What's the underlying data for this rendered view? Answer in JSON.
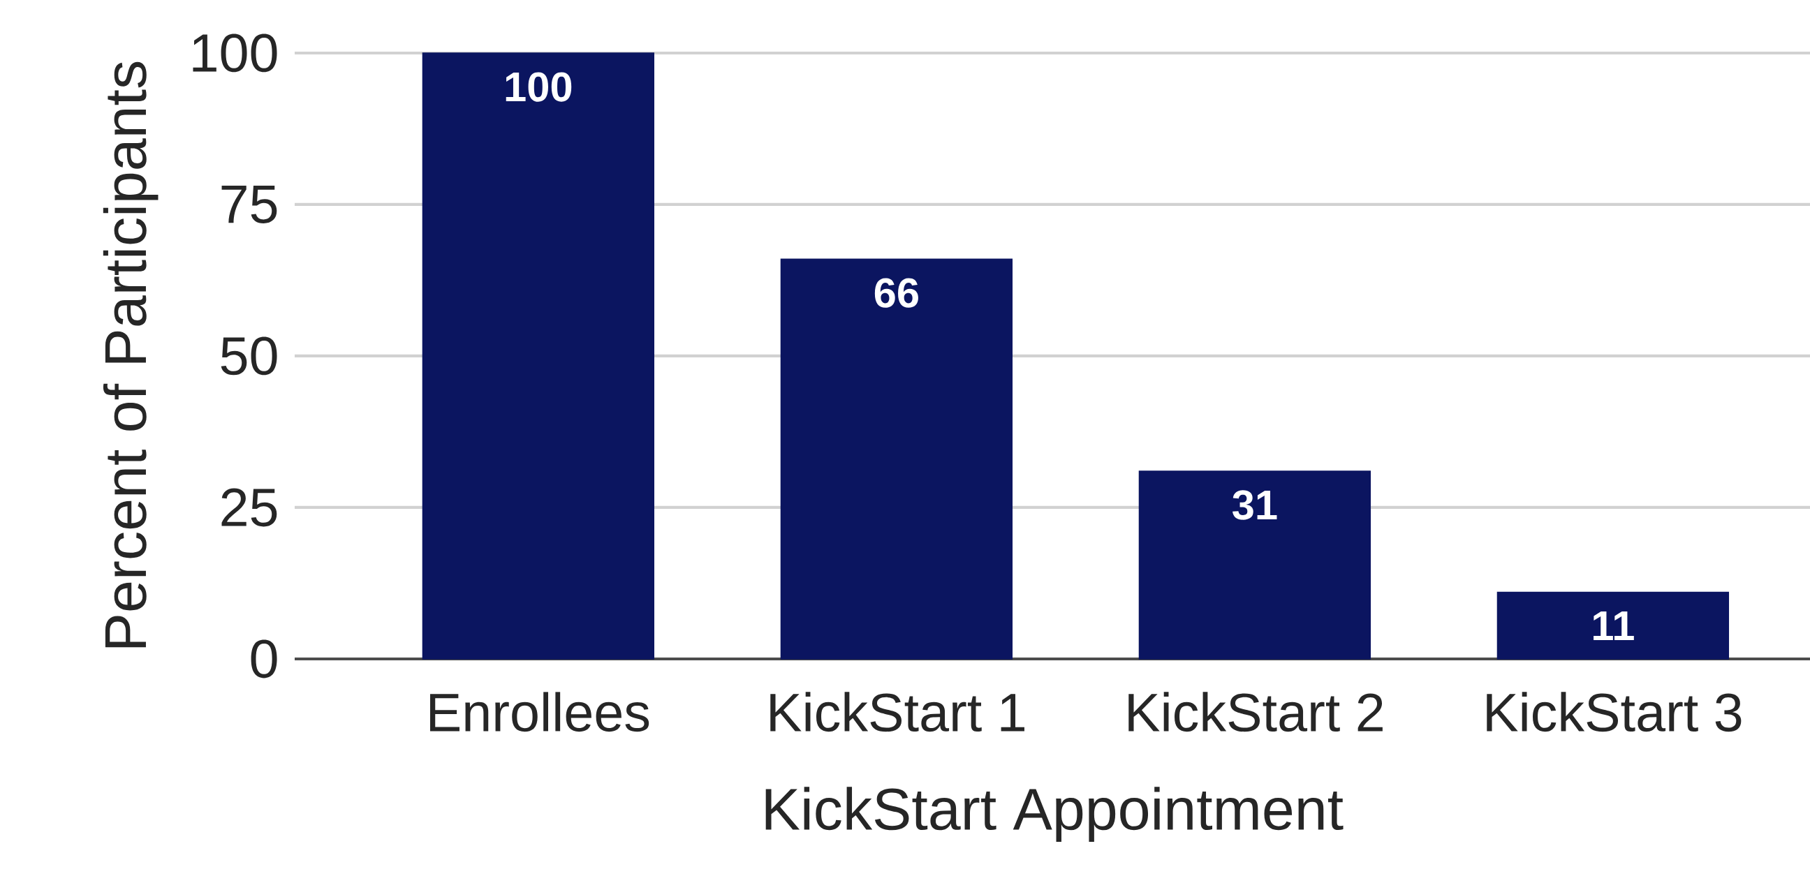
{
  "chart_data": {
    "type": "bar",
    "xlabel": "KickStart Appointment",
    "ylabel": "Percent of Participants",
    "categories": [
      "Enrollees",
      "KickStart 1",
      "KickStart 2",
      "KickStart 3"
    ],
    "values": [
      100,
      66,
      31,
      11
    ],
    "color": "#0b1560",
    "ylim": [
      0,
      100
    ],
    "yticks": [
      0,
      25,
      50,
      75,
      100
    ],
    "grid": "y",
    "data_labels": true
  }
}
